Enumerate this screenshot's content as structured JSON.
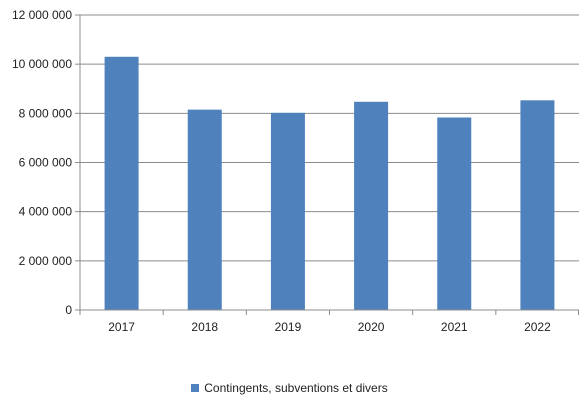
{
  "chart_data": {
    "type": "bar",
    "title": "",
    "xlabel": "",
    "ylabel": "",
    "categories": [
      "2017",
      "2018",
      "2019",
      "2020",
      "2021",
      "2022"
    ],
    "series": [
      {
        "name": "Contingents, subventions et divers",
        "color": "#4F81BD",
        "values": [
          10300000,
          8150000,
          8020000,
          8470000,
          7830000,
          8530000
        ]
      }
    ],
    "ylim": [
      0,
      12000000
    ],
    "yticks": [
      0,
      2000000,
      4000000,
      6000000,
      8000000,
      10000000,
      12000000
    ],
    "ytick_labels": [
      "0",
      "2 000 000",
      "4 000 000",
      "6 000 000",
      "8 000 000",
      "10 000 000",
      "12 000 000"
    ],
    "grid": true,
    "legend_position": "bottom"
  }
}
